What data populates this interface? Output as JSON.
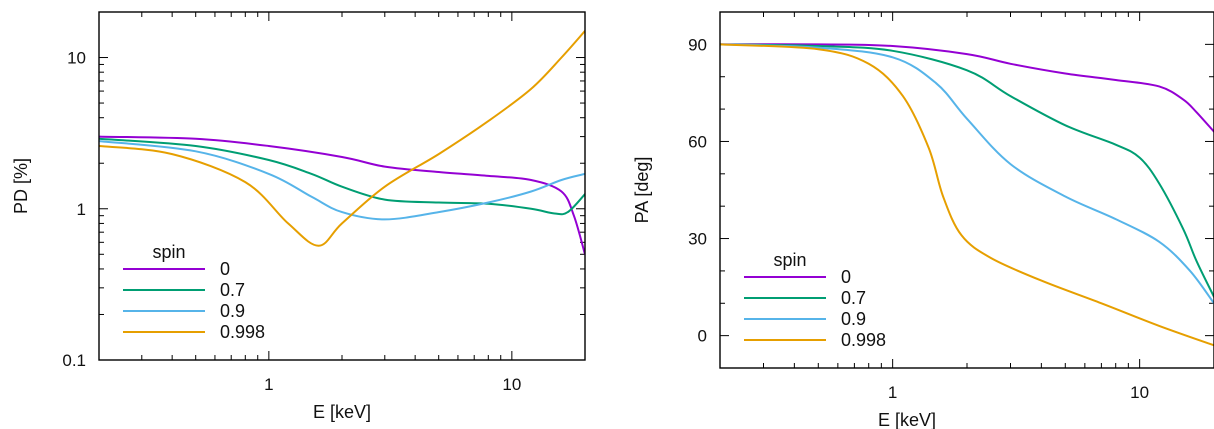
{
  "colors": {
    "spin_0": "#9400D3",
    "spin_0.7": "#009E73",
    "spin_0.9": "#56B4E9",
    "spin_0.998": "#E69F00"
  },
  "chart_data": [
    {
      "type": "line",
      "xlabel": "E [keV]",
      "ylabel": "PD [%]",
      "xscale": "log",
      "yscale": "log",
      "xlim": [
        0.2,
        20
      ],
      "ylim": [
        0.1,
        20
      ],
      "xticks": [
        {
          "v": 1,
          "label": "1"
        },
        {
          "v": 10,
          "label": "10"
        }
      ],
      "yticks": [
        {
          "v": 0.1,
          "label": "0.1"
        },
        {
          "v": 1,
          "label": "1"
        },
        {
          "v": 10,
          "label": "10"
        }
      ],
      "legend": {
        "title": "spin",
        "placement": "bottom-left"
      },
      "series": [
        {
          "name": "0",
          "x": [
            0.2,
            0.5,
            1,
            2,
            3,
            5,
            8,
            12,
            16,
            18,
            20
          ],
          "y": [
            3.0,
            2.9,
            2.6,
            2.2,
            1.9,
            1.75,
            1.65,
            1.55,
            1.3,
            0.9,
            0.5
          ]
        },
        {
          "name": "0.7",
          "x": [
            0.2,
            0.5,
            1,
            1.5,
            2,
            3,
            5,
            8,
            12,
            15,
            17,
            20
          ],
          "y": [
            2.9,
            2.6,
            2.1,
            1.7,
            1.4,
            1.15,
            1.1,
            1.08,
            1.0,
            0.93,
            0.95,
            1.25
          ]
        },
        {
          "name": "0.9",
          "x": [
            0.2,
            0.5,
            1,
            1.5,
            2,
            3,
            5,
            8,
            12,
            16,
            20
          ],
          "y": [
            2.8,
            2.4,
            1.7,
            1.2,
            0.95,
            0.85,
            0.95,
            1.1,
            1.3,
            1.55,
            1.7
          ]
        },
        {
          "name": "0.998",
          "x": [
            0.2,
            0.4,
            0.8,
            1.2,
            1.6,
            2,
            3,
            5,
            8,
            12,
            16,
            20
          ],
          "y": [
            2.6,
            2.3,
            1.5,
            0.8,
            0.57,
            0.8,
            1.4,
            2.3,
            3.8,
            6.2,
            10,
            15
          ]
        }
      ]
    },
    {
      "type": "line",
      "xlabel": "E [keV]",
      "ylabel": "PA [deg]",
      "xscale": "log",
      "xlim": [
        0.2,
        20
      ],
      "ylim": [
        -10,
        100
      ],
      "xticks": [
        {
          "v": 1,
          "label": "1"
        },
        {
          "v": 10,
          "label": "10"
        }
      ],
      "yticks": [
        {
          "v": 0,
          "label": "0"
        },
        {
          "v": 30,
          "label": "30"
        },
        {
          "v": 60,
          "label": "60"
        },
        {
          "v": 90,
          "label": "90"
        }
      ],
      "legend": {
        "title": "spin",
        "placement": "bottom-left"
      },
      "series": [
        {
          "name": "0",
          "x": [
            0.2,
            0.5,
            1,
            2,
            3,
            5,
            8,
            12,
            15,
            17,
            20
          ],
          "y": [
            90,
            90,
            89.5,
            87,
            84,
            81,
            79,
            77,
            73,
            69,
            63
          ]
        },
        {
          "name": "0.7",
          "x": [
            0.2,
            0.5,
            1,
            2,
            3,
            5,
            8,
            10,
            12,
            15,
            17,
            20
          ],
          "y": [
            90,
            89.5,
            88,
            82,
            74,
            65,
            59,
            55,
            47,
            33,
            23,
            12
          ]
        },
        {
          "name": "0.9",
          "x": [
            0.2,
            0.5,
            1,
            1.5,
            2,
            3,
            5,
            8,
            12,
            16,
            20
          ],
          "y": [
            90,
            89,
            86,
            78,
            67,
            53,
            43,
            36,
            29,
            20,
            10
          ]
        },
        {
          "name": "0.998",
          "x": [
            0.2,
            0.5,
            0.8,
            1.1,
            1.4,
            1.6,
            1.9,
            2.5,
            4,
            7,
            12,
            20
          ],
          "y": [
            90,
            88.5,
            84,
            74,
            58,
            43,
            31,
            24,
            17,
            10,
            3,
            -3
          ]
        }
      ]
    }
  ]
}
